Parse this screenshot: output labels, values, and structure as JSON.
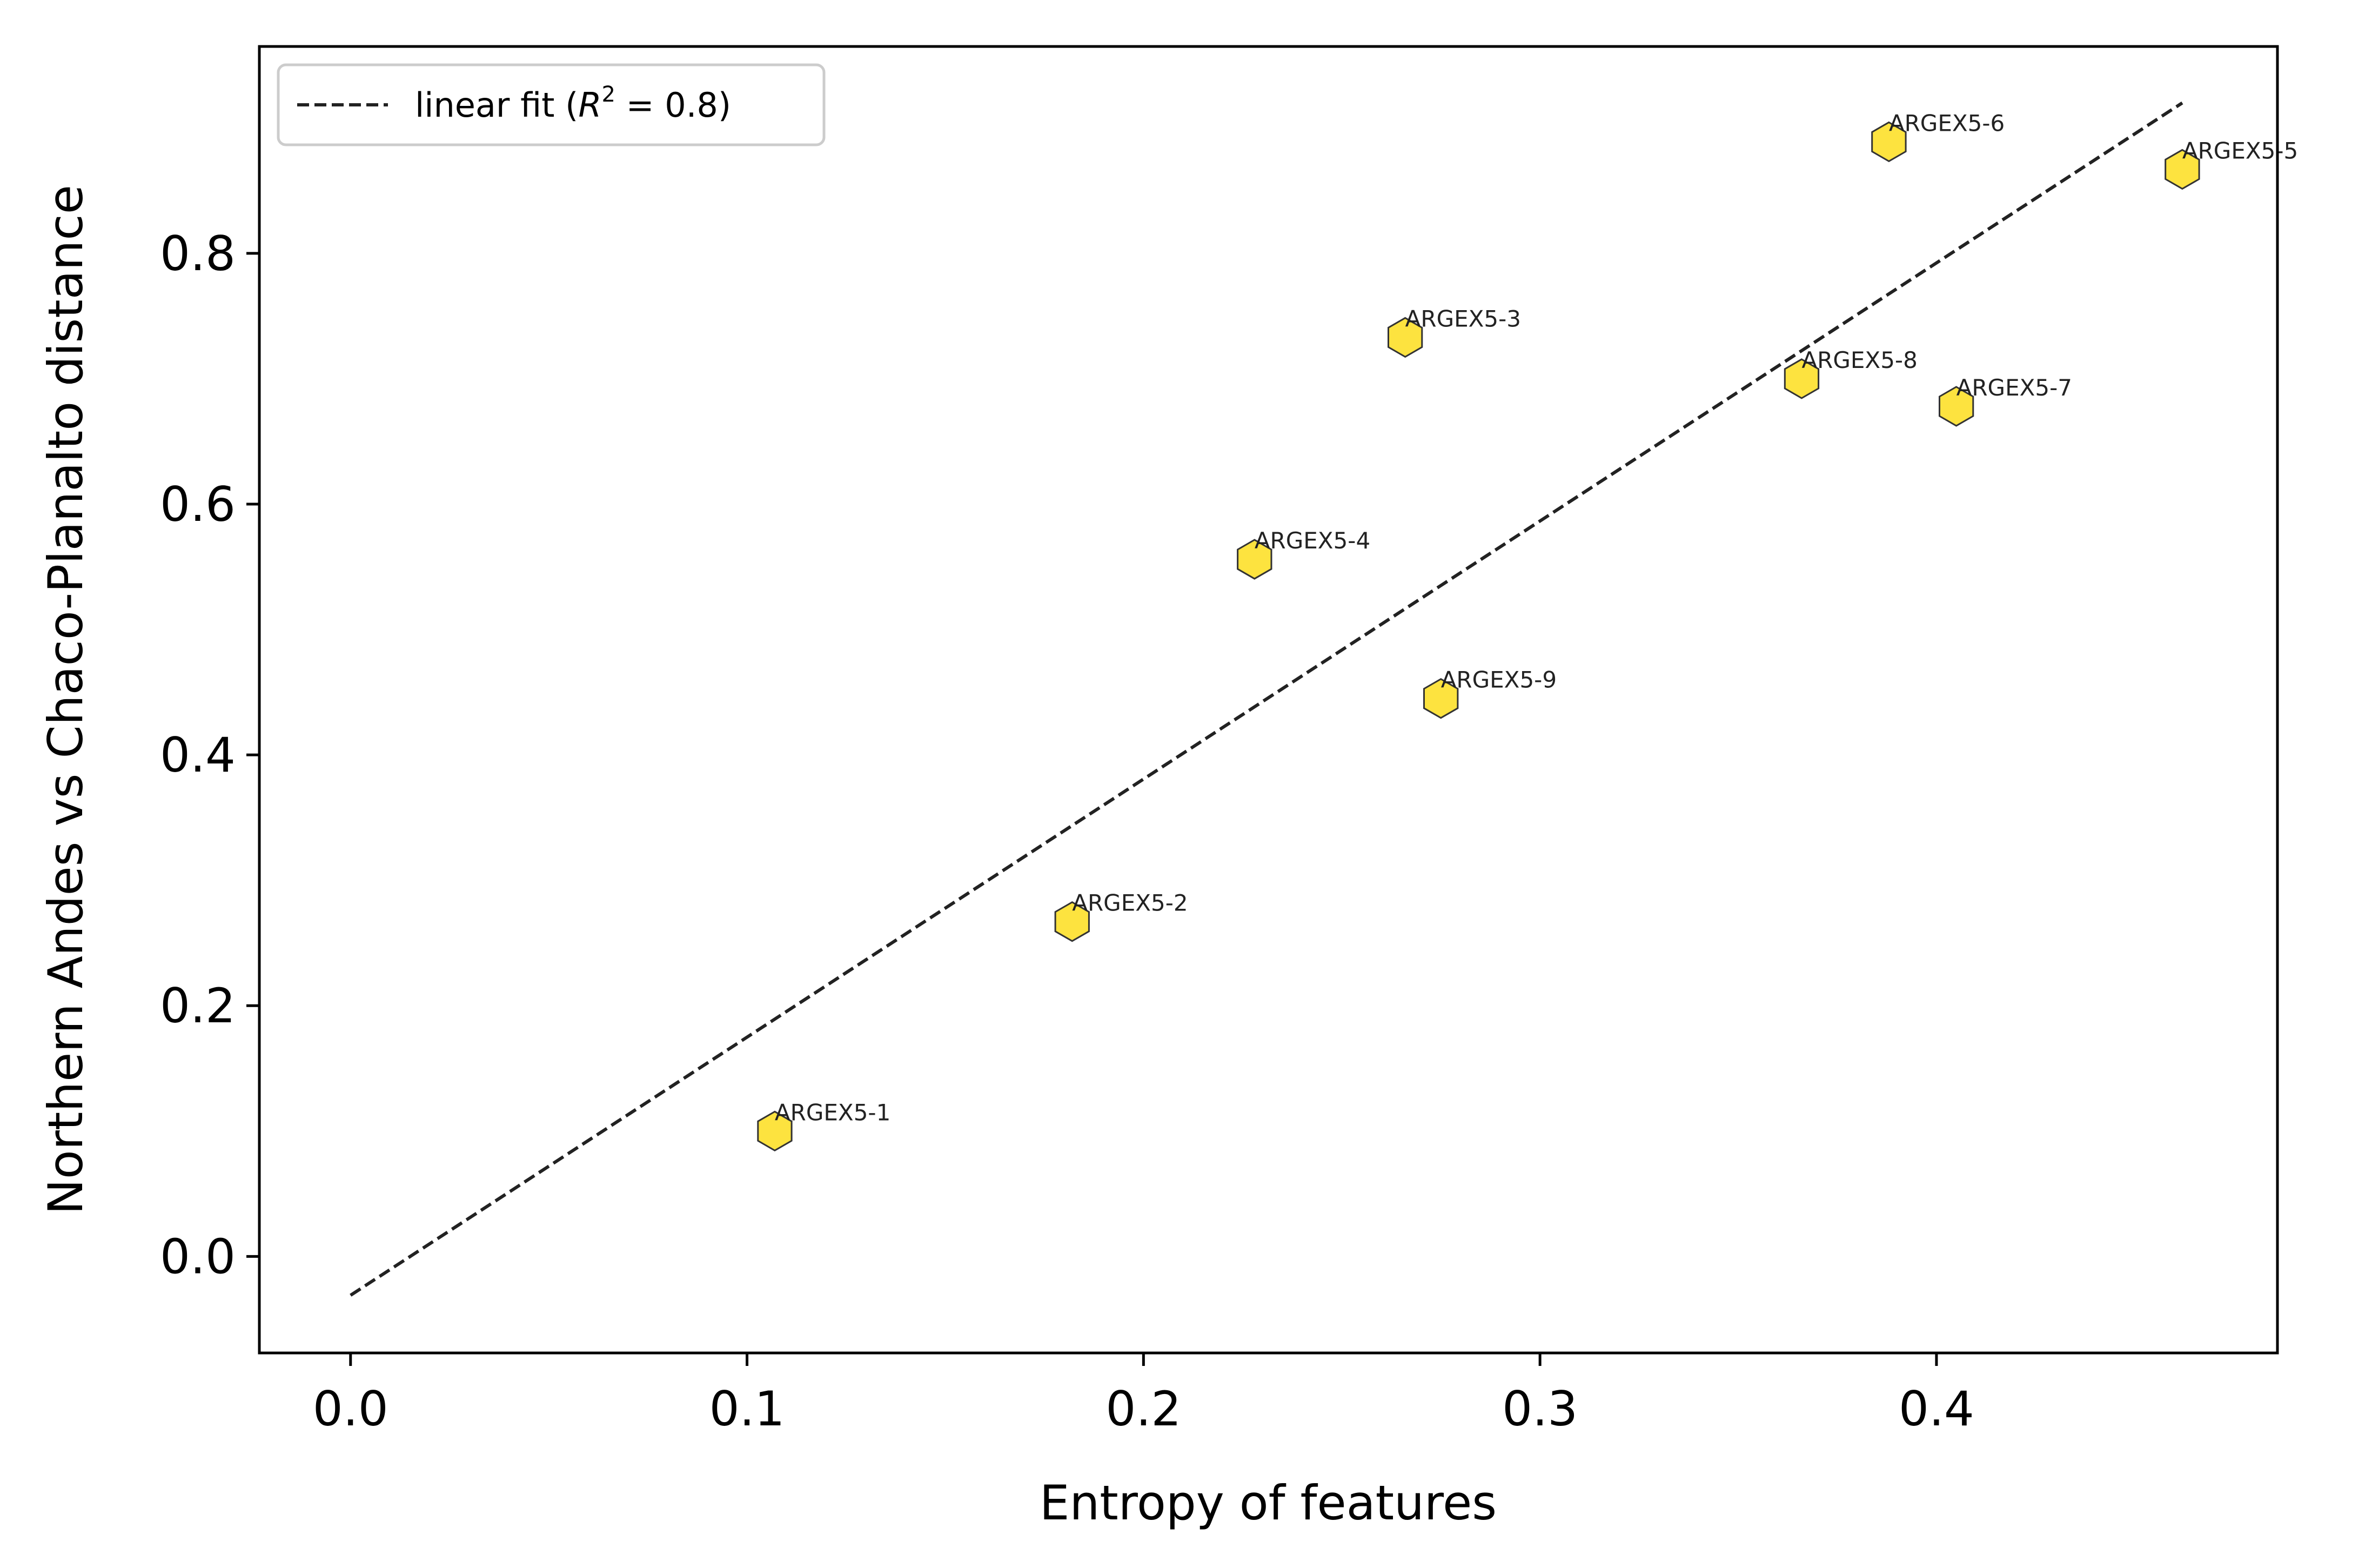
{
  "chart_data": {
    "type": "scatter",
    "title": "",
    "xlabel": "Entropy of features",
    "ylabel": "Northern Andes vs Chaco-Planalto distance",
    "xlim": [
      -0.023,
      0.486
    ],
    "ylim": [
      -0.077,
      0.965
    ],
    "xticks": [
      0.0,
      0.1,
      0.2,
      0.3,
      0.4
    ],
    "yticks": [
      0.0,
      0.2,
      0.4,
      0.6,
      0.8
    ],
    "xtick_labels": [
      "0.0",
      "0.1",
      "0.2",
      "0.3",
      "0.4"
    ],
    "ytick_labels": [
      "0.0",
      "0.2",
      "0.4",
      "0.6",
      "0.8"
    ],
    "grid": false,
    "legend_placement": "top-left",
    "marker_color": "#fde02a",
    "line_color": "#222222",
    "points": [
      {
        "label": "ARGEX5-1",
        "x": 0.107,
        "y": 0.1
      },
      {
        "label": "ARGEX5-2",
        "x": 0.182,
        "y": 0.267
      },
      {
        "label": "ARGEX5-3",
        "x": 0.266,
        "y": 0.733
      },
      {
        "label": "ARGEX5-4",
        "x": 0.228,
        "y": 0.556
      },
      {
        "label": "ARGEX5-5",
        "x": 0.462,
        "y": 0.867
      },
      {
        "label": "ARGEX5-6",
        "x": 0.388,
        "y": 0.889
      },
      {
        "label": "ARGEX5-7",
        "x": 0.405,
        "y": 0.678
      },
      {
        "label": "ARGEX5-8",
        "x": 0.366,
        "y": 0.7
      },
      {
        "label": "ARGEX5-9",
        "x": 0.275,
        "y": 0.445
      }
    ],
    "fit_line": {
      "label_prefix": "linear fit (",
      "label_var": "R",
      "label_exp": "2",
      "label_suffix": " = 0.8)",
      "x": [
        0.0,
        0.462
      ],
      "y": [
        -0.031,
        0.92
      ]
    }
  }
}
